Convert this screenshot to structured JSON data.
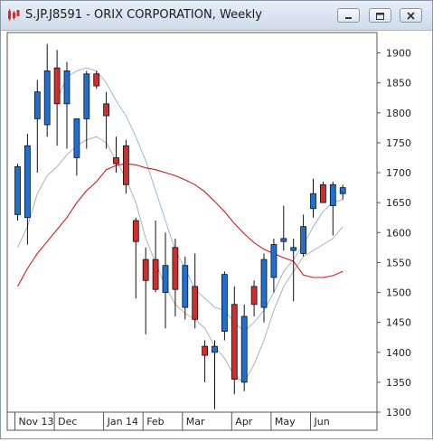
{
  "window": {
    "title": "S.JP.J8591 - ORIX CORPORATION, Weekly",
    "icon": "candlestick-app-icon",
    "buttons": [
      "minimize",
      "maximize",
      "close"
    ]
  },
  "colors": {
    "up": "#1f6fd1",
    "down": "#d42b2b",
    "ma_fast": "#8cb0e0",
    "ma_slow": "#d41a1a",
    "ma_gray": "#a9a9a9"
  },
  "chart_data": {
    "type": "candlestick",
    "ylim": [
      1300,
      1925
    ],
    "y_ticks": [
      "1900",
      "1850",
      "1800",
      "1750",
      "1700",
      "1650",
      "1600",
      "1550",
      "1500",
      "1450",
      "1400",
      "1350",
      "1300"
    ],
    "x_labels": [
      {
        "label": "Nov 13",
        "index": 0
      },
      {
        "label": "Dec",
        "index": 4
      },
      {
        "label": "Jan 14",
        "index": 9
      },
      {
        "label": "Feb",
        "index": 13
      },
      {
        "label": "Mar",
        "index": 17
      },
      {
        "label": "Apr",
        "index": 22
      },
      {
        "label": "May",
        "index": 26
      },
      {
        "label": "Jun",
        "index": 30
      }
    ],
    "candles": [
      {
        "open": 1630,
        "high": 1715,
        "low": 1620,
        "close": 1710
      },
      {
        "open": 1625,
        "high": 1765,
        "low": 1580,
        "close": 1745
      },
      {
        "open": 1790,
        "high": 1855,
        "low": 1700,
        "close": 1835
      },
      {
        "open": 1780,
        "high": 1915,
        "low": 1760,
        "close": 1870
      },
      {
        "open": 1875,
        "high": 1905,
        "low": 1745,
        "close": 1815
      },
      {
        "open": 1815,
        "high": 1885,
        "low": 1740,
        "close": 1870
      },
      {
        "open": 1725,
        "high": 1785,
        "low": 1695,
        "close": 1790
      },
      {
        "open": 1790,
        "high": 1870,
        "low": 1740,
        "close": 1865
      },
      {
        "open": 1865,
        "high": 1870,
        "low": 1840,
        "close": 1845
      },
      {
        "open": 1815,
        "high": 1835,
        "low": 1740,
        "close": 1795
      },
      {
        "open": 1725,
        "high": 1760,
        "low": 1700,
        "close": 1715
      },
      {
        "open": 1745,
        "high": 1755,
        "low": 1665,
        "close": 1680
      },
      {
        "open": 1620,
        "high": 1625,
        "low": 1490,
        "close": 1585
      },
      {
        "open": 1555,
        "high": 1575,
        "low": 1430,
        "close": 1520
      },
      {
        "open": 1555,
        "high": 1620,
        "low": 1500,
        "close": 1505
      },
      {
        "open": 1500,
        "high": 1600,
        "low": 1440,
        "close": 1545
      },
      {
        "open": 1575,
        "high": 1590,
        "low": 1460,
        "close": 1505
      },
      {
        "open": 1475,
        "high": 1560,
        "low": 1455,
        "close": 1545
      },
      {
        "open": 1510,
        "high": 1565,
        "low": 1440,
        "close": 1455
      },
      {
        "open": 1410,
        "high": 1420,
        "low": 1350,
        "close": 1395
      },
      {
        "open": 1400,
        "high": 1420,
        "low": 1305,
        "close": 1410
      },
      {
        "open": 1435,
        "high": 1535,
        "low": 1420,
        "close": 1530
      },
      {
        "open": 1480,
        "high": 1510,
        "low": 1330,
        "close": 1355
      },
      {
        "open": 1350,
        "high": 1480,
        "low": 1335,
        "close": 1460
      },
      {
        "open": 1510,
        "high": 1520,
        "low": 1460,
        "close": 1480
      },
      {
        "open": 1475,
        "high": 1565,
        "low": 1450,
        "close": 1555
      },
      {
        "open": 1525,
        "high": 1590,
        "low": 1500,
        "close": 1580
      },
      {
        "open": 1585,
        "high": 1645,
        "low": 1570,
        "close": 1590
      },
      {
        "open": 1570,
        "high": 1590,
        "low": 1485,
        "close": 1575
      },
      {
        "open": 1565,
        "high": 1630,
        "low": 1560,
        "close": 1610
      },
      {
        "open": 1640,
        "high": 1690,
        "low": 1625,
        "close": 1665
      },
      {
        "open": 1680,
        "high": 1685,
        "low": 1650,
        "close": 1650
      },
      {
        "open": 1645,
        "high": 1685,
        "low": 1595,
        "close": 1680
      },
      {
        "open": 1665,
        "high": 1680,
        "low": 1655,
        "close": 1675
      }
    ],
    "series": [
      {
        "style": "light-blue",
        "values": [
          null,
          null,
          null,
          null,
          1820,
          1860,
          1870,
          1875,
          1870,
          1850,
          1820,
          1795,
          1760,
          1720,
          1670,
          1620,
          1570,
          1540,
          1505,
          1490,
          1475,
          1470,
          1450,
          1435,
          1450,
          1470,
          1500,
          1535,
          1555,
          1580,
          1610,
          1635,
          1650,
          1655
        ]
      },
      {
        "style": "gray",
        "values": [
          1575,
          1610,
          1665,
          1695,
          1710,
          1730,
          1745,
          1755,
          1760,
          1750,
          1720,
          1690,
          1650,
          1590,
          1550,
          1510,
          1480,
          1465,
          1455,
          1440,
          1410,
          1390,
          1360,
          1350,
          1380,
          1420,
          1470,
          1510,
          1535,
          1560,
          1570,
          1580,
          1590,
          1610
        ]
      },
      {
        "style": "red",
        "values": [
          1510,
          1540,
          1565,
          1585,
          1605,
          1625,
          1650,
          1670,
          1685,
          1705,
          1712,
          1715,
          1713,
          1708,
          1705,
          1700,
          1695,
          1688,
          1680,
          1668,
          1652,
          1635,
          1615,
          1598,
          1583,
          1572,
          1565,
          1558,
          1552,
          1529,
          1525,
          1525,
          1528,
          1535
        ]
      }
    ]
  }
}
